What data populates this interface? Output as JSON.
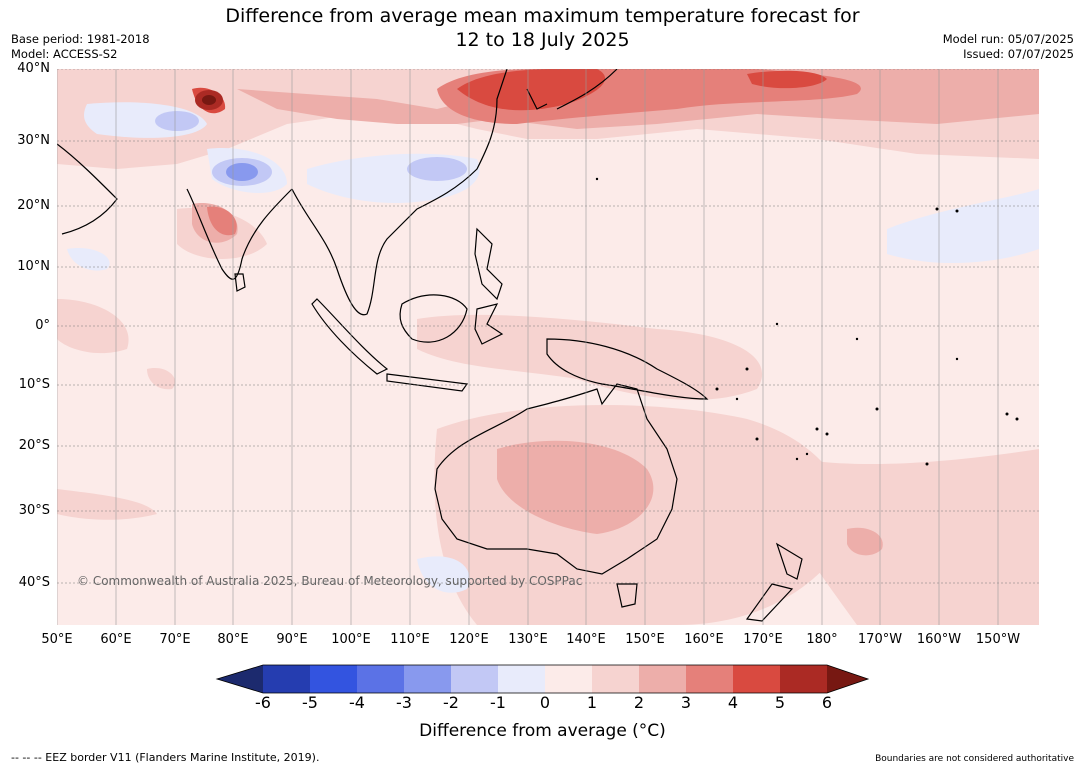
{
  "title_line1": "Difference from average mean maximum temperature forecast for",
  "title_line2": "12 to 18 July 2025",
  "base_period": "Base period: 1981-2018",
  "model": "Model: ACCESS-S2",
  "model_run": "Model run: 05/07/2025",
  "issued": "Issued: 07/07/2025",
  "lat_labels": [
    "40°N",
    "30°N",
    "20°N",
    "10°N",
    "0°",
    "10°S",
    "20°S",
    "30°S",
    "40°S"
  ],
  "lon_labels": [
    "50°E",
    "60°E",
    "70°E",
    "80°E",
    "90°E",
    "100°E",
    "110°E",
    "120°E",
    "130°E",
    "140°E",
    "150°E",
    "160°E",
    "170°E",
    "180°",
    "170°W",
    "160°W",
    "150°W"
  ],
  "copyright": "© Commonwealth of Australia 2025, Bureau of Meteorology, supported by COSPPac",
  "colorbar": {
    "label": "Difference from average (°C)",
    "ticks": [
      "-6",
      "-5",
      "-4",
      "-3",
      "-2",
      "-1",
      "0",
      "1",
      "2",
      "3",
      "4",
      "5",
      "6"
    ],
    "colors": {
      "below_-6": "#1c2a6e",
      "-6_-5": "#253db0",
      "-5_-4": "#3354e0",
      "-4_-3": "#5b72e6",
      "-3_-2": "#8899ee",
      "-2_-1": "#c2c8f5",
      "-1_0": "#e8ebfb",
      "0_1": "#fcebe9",
      "1_2": "#f6d3d0",
      "2_3": "#edaeaa",
      "3_4": "#e5807a",
      "4_5": "#d94a40",
      "5_6": "#ab2a24",
      "above_6": "#771812"
    }
  },
  "footer_left": "--  --  -- EEZ border V11 (Flanders Marine Institute, 2019).",
  "footer_right": "Boundaries are not considered authoritative"
}
